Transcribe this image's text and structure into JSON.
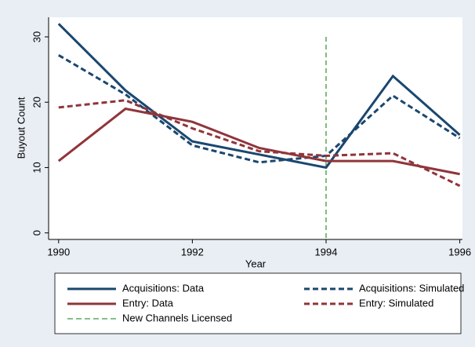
{
  "chart_data": {
    "type": "line",
    "x_label": "Year",
    "y_label": "Buyout Count",
    "x": [
      1990,
      1991,
      1992,
      1993,
      1994,
      1995,
      1996
    ],
    "xlim": [
      1989.85,
      1996.04
    ],
    "xticks": [
      1990,
      1992,
      1994,
      1996
    ],
    "ylim": [
      -1,
      33
    ],
    "yticks": [
      0,
      10,
      20,
      30
    ],
    "series": [
      {
        "name": "Acquisitions: Data",
        "color": "#1a476f",
        "style": "solid",
        "values": [
          32,
          21.8,
          14,
          12,
          10,
          24,
          15
        ]
      },
      {
        "name": "Acquisitions: Simulated",
        "color": "#1a476f",
        "style": "dash",
        "values": [
          27.2,
          21.2,
          13.4,
          10.8,
          11.8,
          21,
          14.5
        ]
      },
      {
        "name": "Entry: Data",
        "color": "#90353b",
        "style": "solid",
        "values": [
          11,
          19,
          17,
          13,
          11,
          11,
          9
        ]
      },
      {
        "name": "Entry: Simulated",
        "color": "#90353b",
        "style": "dash",
        "values": [
          19.2,
          20.3,
          16,
          12.5,
          11.8,
          12.2,
          7.2
        ]
      }
    ],
    "vline": {
      "name": "New Channels Licensed",
      "color": "#3a9a3a",
      "style": "dash",
      "x": 1994
    }
  }
}
